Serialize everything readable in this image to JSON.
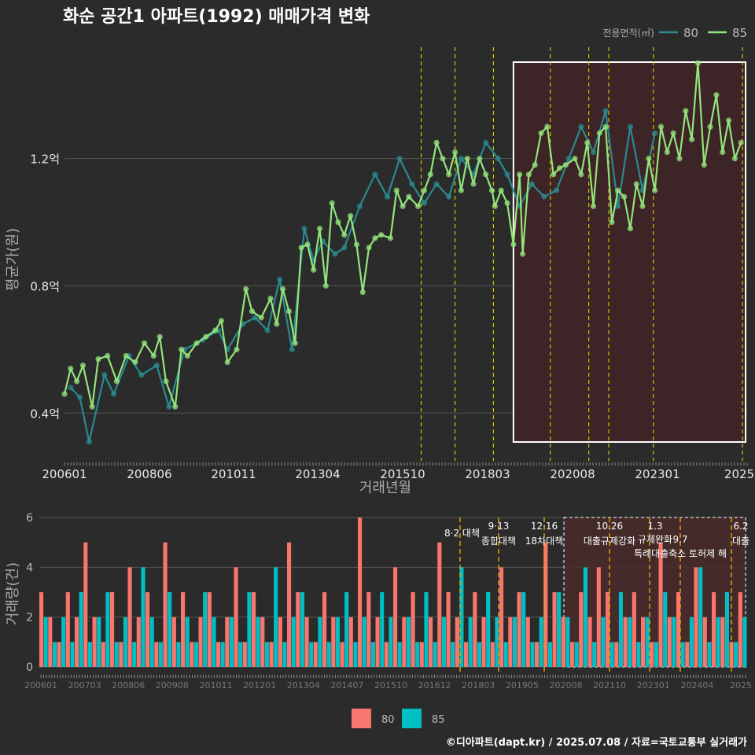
{
  "title": "화순 공간1 아파트(1992) 매매가격 변화",
  "legend_title": "전용면적(㎡)",
  "caption": "©디아파트(dapt.kr) / 2025.07.08 / 자료=국토교통부 실거래가",
  "colors": {
    "bg": "#2b2b2b",
    "grid": "#555555",
    "s80_line": "#2a8a8f",
    "s85_line": "#93e47c",
    "s80_bar": "#f8766d",
    "s85_bar": "#00bfc4",
    "policy_line": "#d4c000",
    "highlight_fill": "#3d2426",
    "highlight_stroke": "#ffffff"
  },
  "chart_data": [
    {
      "type": "line",
      "title": "화순 공간1 아파트(1992) 매매가격 변화",
      "xlabel": "거래년월",
      "ylabel": "평균가(원)",
      "ylim": [
        0.25,
        1.55
      ],
      "y_ticks": [
        {
          "v": 0.4,
          "label": "0.4억"
        },
        {
          "v": 0.8,
          "label": "0.8억"
        },
        {
          "v": 1.2,
          "label": "1.2억"
        }
      ],
      "x_tick_labels": [
        "200601",
        "200806",
        "201011",
        "201304",
        "201510",
        "201803",
        "202008",
        "202301",
        "2025"
      ],
      "legend_title": "전용면적(㎡)",
      "series": [
        {
          "name": "80",
          "points": [
            [
              2006.2,
              0.48
            ],
            [
              2006.5,
              0.45
            ],
            [
              2006.8,
              0.31
            ],
            [
              2007.3,
              0.52
            ],
            [
              2007.6,
              0.46
            ],
            [
              2008.1,
              0.58
            ],
            [
              2008.5,
              0.52
            ],
            [
              2009.0,
              0.55
            ],
            [
              2009.4,
              0.42
            ],
            [
              2009.9,
              0.6
            ],
            [
              2010.5,
              0.63
            ],
            [
              2011.0,
              0.66
            ],
            [
              2011.3,
              0.6
            ],
            [
              2011.8,
              0.68
            ],
            [
              2012.2,
              0.7
            ],
            [
              2012.6,
              0.66
            ],
            [
              2013.0,
              0.82
            ],
            [
              2013.4,
              0.6
            ],
            [
              2013.8,
              0.98
            ],
            [
              2014.1,
              0.88
            ],
            [
              2014.4,
              0.94
            ],
            [
              2014.8,
              0.9
            ],
            [
              2015.1,
              0.92
            ],
            [
              2015.6,
              1.05
            ],
            [
              2016.1,
              1.15
            ],
            [
              2016.5,
              1.08
            ],
            [
              2016.9,
              1.2
            ],
            [
              2017.3,
              1.12
            ],
            [
              2017.7,
              1.06
            ],
            [
              2018.1,
              1.12
            ],
            [
              2018.5,
              1.08
            ],
            [
              2018.9,
              1.2
            ],
            [
              2019.3,
              1.15
            ],
            [
              2019.7,
              1.25
            ],
            [
              2020.1,
              1.2
            ],
            [
              2020.4,
              1.15
            ],
            [
              2020.8,
              1.05
            ],
            [
              2021.2,
              1.12
            ],
            [
              2021.6,
              1.08
            ],
            [
              2022.0,
              1.1
            ],
            [
              2022.4,
              1.2
            ],
            [
              2022.8,
              1.3
            ],
            [
              2023.2,
              1.22
            ],
            [
              2023.6,
              1.35
            ],
            [
              2024.0,
              1.05
            ],
            [
              2024.4,
              1.3
            ],
            [
              2024.8,
              1.1
            ],
            [
              2025.2,
              1.28
            ]
          ]
        },
        {
          "name": "85",
          "points": [
            [
              2006.0,
              0.46
            ],
            [
              2006.2,
              0.54
            ],
            [
              2006.4,
              0.5
            ],
            [
              2006.6,
              0.55
            ],
            [
              2006.9,
              0.42
            ],
            [
              2007.1,
              0.57
            ],
            [
              2007.4,
              0.58
            ],
            [
              2007.7,
              0.5
            ],
            [
              2008.0,
              0.58
            ],
            [
              2008.3,
              0.56
            ],
            [
              2008.6,
              0.62
            ],
            [
              2008.9,
              0.58
            ],
            [
              2009.1,
              0.64
            ],
            [
              2009.3,
              0.5
            ],
            [
              2009.6,
              0.42
            ],
            [
              2009.8,
              0.6
            ],
            [
              2010.0,
              0.58
            ],
            [
              2010.3,
              0.62
            ],
            [
              2010.6,
              0.64
            ],
            [
              2010.9,
              0.66
            ],
            [
              2011.1,
              0.69
            ],
            [
              2011.3,
              0.56
            ],
            [
              2011.6,
              0.6
            ],
            [
              2011.9,
              0.79
            ],
            [
              2012.1,
              0.72
            ],
            [
              2012.4,
              0.7
            ],
            [
              2012.7,
              0.76
            ],
            [
              2012.9,
              0.68
            ],
            [
              2013.1,
              0.79
            ],
            [
              2013.3,
              0.72
            ],
            [
              2013.5,
              0.62
            ],
            [
              2013.7,
              0.92
            ],
            [
              2013.9,
              0.93
            ],
            [
              2014.1,
              0.85
            ],
            [
              2014.3,
              0.98
            ],
            [
              2014.5,
              0.8
            ],
            [
              2014.7,
              1.06
            ],
            [
              2014.9,
              1.0
            ],
            [
              2015.1,
              0.96
            ],
            [
              2015.3,
              1.02
            ],
            [
              2015.5,
              0.93
            ],
            [
              2015.7,
              0.78
            ],
            [
              2015.9,
              0.92
            ],
            [
              2016.1,
              0.95
            ],
            [
              2016.3,
              0.96
            ],
            [
              2016.6,
              0.95
            ],
            [
              2016.8,
              1.1
            ],
            [
              2017.0,
              1.05
            ],
            [
              2017.2,
              1.08
            ],
            [
              2017.5,
              1.05
            ],
            [
              2017.7,
              1.1
            ],
            [
              2017.9,
              1.15
            ],
            [
              2018.1,
              1.25
            ],
            [
              2018.3,
              1.2
            ],
            [
              2018.5,
              1.15
            ],
            [
              2018.7,
              1.22
            ],
            [
              2018.9,
              1.1
            ],
            [
              2019.1,
              1.2
            ],
            [
              2019.3,
              1.12
            ],
            [
              2019.5,
              1.2
            ],
            [
              2019.7,
              1.15
            ],
            [
              2019.9,
              1.1
            ],
            [
              2020.0,
              1.05
            ],
            [
              2020.2,
              1.1
            ],
            [
              2020.4,
              1.06
            ],
            [
              2020.6,
              0.93
            ],
            [
              2020.8,
              1.15
            ],
            [
              2020.9,
              0.9
            ],
            [
              2021.1,
              1.15
            ],
            [
              2021.3,
              1.18
            ],
            [
              2021.5,
              1.28
            ],
            [
              2021.7,
              1.3
            ],
            [
              2021.9,
              1.15
            ],
            [
              2022.1,
              1.17
            ],
            [
              2022.3,
              1.18
            ],
            [
              2022.6,
              1.2
            ],
            [
              2022.8,
              1.15
            ],
            [
              2023.0,
              1.25
            ],
            [
              2023.2,
              1.05
            ],
            [
              2023.4,
              1.28
            ],
            [
              2023.6,
              1.3
            ],
            [
              2023.8,
              1.0
            ],
            [
              2024.0,
              1.1
            ],
            [
              2024.2,
              1.08
            ],
            [
              2024.4,
              0.98
            ],
            [
              2024.6,
              1.12
            ],
            [
              2024.8,
              1.05
            ],
            [
              2025.0,
              1.2
            ],
            [
              2025.2,
              1.1
            ],
            [
              2025.4,
              1.3
            ],
            [
              2025.6,
              1.22
            ],
            [
              2025.8,
              1.28
            ],
            [
              2026.0,
              1.2
            ],
            [
              2026.2,
              1.35
            ],
            [
              2026.4,
              1.26
            ],
            [
              2026.6,
              1.5
            ],
            [
              2026.8,
              1.18
            ],
            [
              2027.0,
              1.3
            ],
            [
              2027.2,
              1.4
            ],
            [
              2027.4,
              1.22
            ],
            [
              2027.6,
              1.32
            ],
            [
              2027.8,
              1.2
            ],
            [
              2028.0,
              1.25
            ]
          ]
        }
      ]
    },
    {
      "type": "bar",
      "ylabel": "거래량(건)",
      "ylim": [
        0,
        6
      ],
      "y_ticks": [
        0,
        2,
        4,
        6
      ],
      "x_tick_labels": [
        "200601",
        "200703",
        "200806",
        "200908",
        "201011",
        "201201",
        "201304",
        "201407",
        "201510",
        "201612",
        "201803",
        "201905",
        "202008",
        "202110",
        "202301",
        "202404",
        "2025"
      ],
      "legend": [
        "80",
        "85"
      ],
      "policy_annotations": [
        {
          "date": "8·2 대책"
        },
        {
          "date": "9·13",
          "text": "종합대책"
        },
        {
          "date": "12·16",
          "text": "18차대책"
        },
        {
          "date": "10.26",
          "text": "대출규제강화"
        },
        {
          "date": "1.3",
          "text": "규제완화"
        },
        {
          "date": "9.7",
          "text": "특례대출축소 토허제 해"
        },
        {
          "date": "6.2",
          "text": "대출"
        }
      ],
      "counts_80": [
        3,
        2,
        1,
        3,
        2,
        5,
        2,
        1,
        3,
        1,
        4,
        2,
        3,
        1,
        5,
        2,
        3,
        1,
        2,
        3,
        1,
        2,
        4,
        1,
        3,
        2,
        1,
        2,
        5,
        3,
        2,
        1,
        3,
        2,
        1,
        2,
        6,
        3,
        2,
        1,
        4,
        2,
        3,
        1,
        2,
        5,
        3,
        2,
        1,
        3,
        2,
        1,
        4,
        2,
        3,
        2,
        1,
        5,
        3,
        2,
        1,
        3,
        2,
        4,
        3,
        1,
        2,
        3,
        2,
        1,
        5,
        2,
        3,
        1,
        4,
        2,
        3,
        2,
        1,
        3
      ],
      "counts_85": [
        2,
        1,
        2,
        1,
        3,
        1,
        2,
        3,
        1,
        2,
        1,
        4,
        2,
        1,
        3,
        1,
        2,
        1,
        3,
        2,
        1,
        2,
        1,
        3,
        2,
        1,
        4,
        1,
        2,
        3,
        1,
        2,
        1,
        2,
        3,
        1,
        2,
        1,
        3,
        2,
        1,
        2,
        1,
        3,
        1,
        2,
        1,
        4,
        2,
        1,
        3,
        2,
        1,
        2,
        3,
        1,
        2,
        1,
        3,
        2,
        1,
        4,
        1,
        2,
        1,
        3,
        2,
        1,
        2,
        1,
        3,
        2,
        1,
        2,
        4,
        1,
        2,
        3,
        1,
        2
      ]
    }
  ]
}
